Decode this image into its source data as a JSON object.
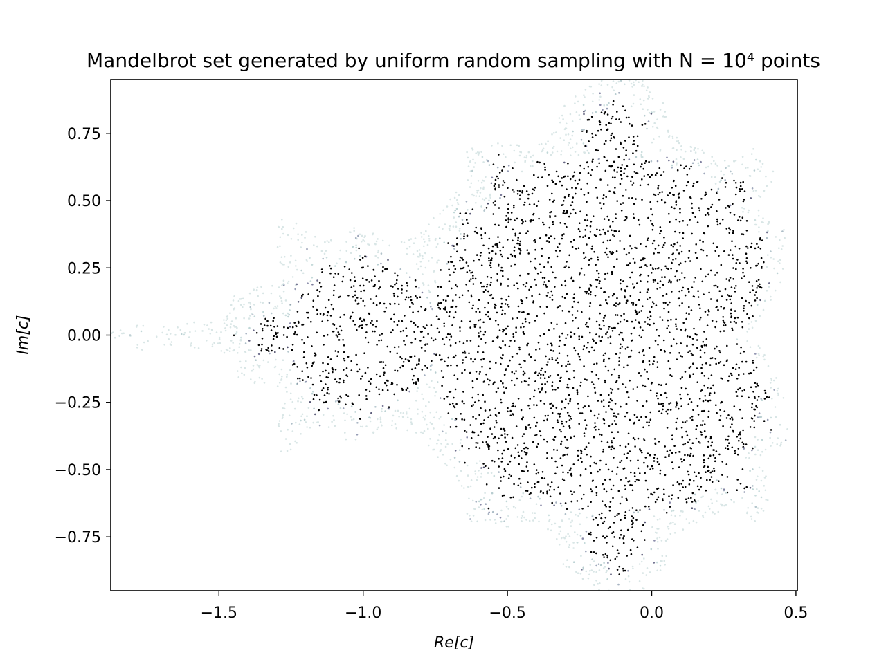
{
  "chart_data": {
    "type": "scatter",
    "title": "Mandelbrot set generated by uniform random sampling with N = 10⁴ points",
    "xlabel": "Re[c]",
    "ylabel": "Im[c]",
    "xlim": [
      -1.875,
      0.505
    ],
    "ylim": [
      -0.95,
      0.95
    ],
    "xticks": [
      -1.5,
      -1.0,
      -0.5,
      0.0,
      0.5
    ],
    "xtick_labels": [
      "−1.5",
      "−1.0",
      "−0.5",
      "0.0",
      "0.5"
    ],
    "yticks": [
      -0.75,
      -0.5,
      -0.25,
      0.0,
      0.25,
      0.5,
      0.75
    ],
    "ytick_labels": [
      "−0.75",
      "−0.50",
      "−0.25",
      "0.00",
      "0.25",
      "0.50",
      "0.75"
    ],
    "grid": false,
    "legend": "none",
    "marker": "small dots colored by escape iteration (bone colormap)",
    "colormap": [
      "#000000",
      "#4a4a66",
      "#8c8cab",
      "#bfd6d6",
      "#ffffff"
    ],
    "sampling_region": {
      "x_range": [
        -2.0,
        0.5
      ],
      "y_range": [
        -1.0,
        1.0
      ]
    },
    "n_points": 10000,
    "max_iterations": 50
  }
}
